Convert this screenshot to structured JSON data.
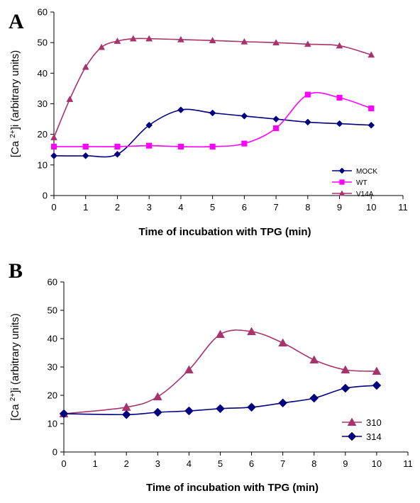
{
  "chart_data": [
    {
      "type": "line",
      "panel_label": "A",
      "xlabel": "Time of incubation with TPG (min)",
      "ylabel_parts": [
        "[Ca ",
        "2+",
        "]i (arbitrary units)"
      ],
      "xlim": [
        0,
        11
      ],
      "ylim": [
        0,
        60
      ],
      "xticks": [
        "0",
        "1",
        "2",
        "3",
        "4",
        "5",
        "6",
        "7",
        "8",
        "9",
        "10",
        "11"
      ],
      "yticks": [
        "0",
        "10",
        "20",
        "30",
        "40",
        "50",
        "60"
      ],
      "grid": false,
      "legend_position": "right",
      "series": [
        {
          "name": "MOCK",
          "color": "#000080",
          "marker": "diamond",
          "x": [
            0,
            1,
            2,
            3,
            4,
            5,
            6,
            7,
            8,
            9,
            10
          ],
          "y": [
            13,
            13,
            13.5,
            23,
            28,
            27,
            26,
            25,
            24,
            23.5,
            23
          ]
        },
        {
          "name": "WT",
          "color": "#ff00ff",
          "marker": "square",
          "x": [
            0,
            1,
            2,
            3,
            4,
            5,
            6,
            7,
            8,
            9,
            10
          ],
          "y": [
            16,
            16,
            16,
            16.3,
            16,
            16,
            17,
            22,
            33,
            32,
            28.5
          ]
        },
        {
          "name": "V14A",
          "color": "#a8336b",
          "marker": "triangle",
          "x": [
            0,
            0.5,
            1,
            1.5,
            2,
            2.5,
            3,
            4,
            5,
            6,
            7,
            8,
            9,
            10
          ],
          "y": [
            19,
            31.5,
            42,
            48.5,
            50.5,
            51.3,
            51.3,
            51,
            50.7,
            50.3,
            50,
            49.5,
            49,
            46
          ]
        }
      ]
    },
    {
      "type": "line",
      "panel_label": "B",
      "xlabel": "Time of incubation with TPG (min)",
      "ylabel_parts": [
        "[Ca ",
        "2+",
        "]i (arbitrary units)"
      ],
      "xlim": [
        0,
        11
      ],
      "ylim": [
        0,
        60
      ],
      "xticks": [
        "0",
        "1",
        "2",
        "3",
        "4",
        "5",
        "6",
        "7",
        "8",
        "9",
        "10",
        "11"
      ],
      "yticks": [
        "0",
        "10",
        "20",
        "30",
        "40",
        "50",
        "60"
      ],
      "grid": false,
      "legend_position": "bottom-right",
      "series": [
        {
          "name": "310",
          "color": "#a8336b",
          "marker": "triangle",
          "x": [
            0,
            2,
            3,
            4,
            5,
            6,
            7,
            8,
            9,
            10
          ],
          "y": [
            13.5,
            15.8,
            19.5,
            29,
            41.5,
            42.5,
            38.5,
            32.5,
            29,
            28.5
          ]
        },
        {
          "name": "314",
          "color": "#000080",
          "marker": "diamond",
          "x": [
            0,
            2,
            3,
            4,
            5,
            6,
            7,
            8,
            9,
            10
          ],
          "y": [
            13.5,
            13.2,
            14,
            14.5,
            15.3,
            15.8,
            17.3,
            19,
            22.5,
            23.5
          ]
        }
      ]
    }
  ]
}
